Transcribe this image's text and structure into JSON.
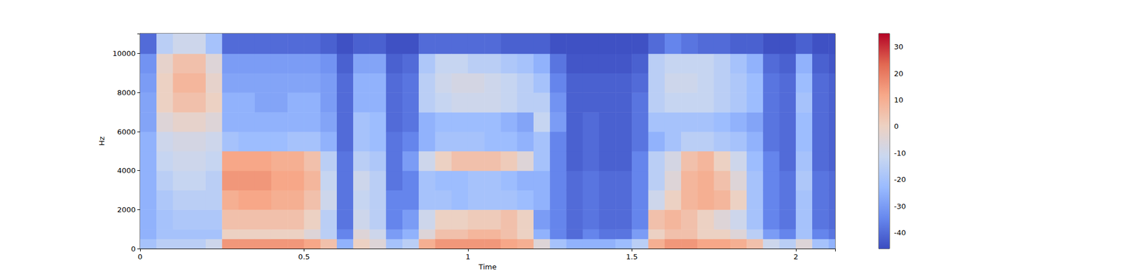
{
  "chart_data": {
    "type": "heatmap",
    "xlabel": "Time",
    "ylabel": "Hz",
    "xlim": [
      0,
      2.12
    ],
    "xticks": [
      0,
      0.5,
      1,
      1.5,
      2
    ],
    "ylim": [
      0,
      11025
    ],
    "yticks": [
      0,
      2000,
      4000,
      6000,
      8000,
      10000
    ],
    "time_edges": [
      0,
      0.05,
      0.1,
      0.15,
      0.2,
      0.25,
      0.3,
      0.35,
      0.4,
      0.45,
      0.5,
      0.55,
      0.6,
      0.65,
      0.7,
      0.75,
      0.8,
      0.85,
      0.9,
      0.95,
      1.0,
      1.05,
      1.1,
      1.15,
      1.2,
      1.25,
      1.3,
      1.35,
      1.4,
      1.45,
      1.5,
      1.55,
      1.6,
      1.65,
      1.7,
      1.75,
      1.8,
      1.85,
      1.9,
      1.95,
      2.0,
      2.05,
      2.1,
      2.12
    ],
    "freq_edges": [
      0,
      500,
      1000,
      2000,
      3000,
      4000,
      5000,
      6000,
      7000,
      8000,
      9000,
      10000,
      11025
    ],
    "cells": [
      [
        -20,
        -25,
        -25,
        -25,
        -25,
        -25,
        -25,
        -28,
        -28,
        -30,
        -32,
        -40
      ],
      [
        -15,
        -20,
        -20,
        -18,
        -15,
        -12,
        -10,
        -5,
        0,
        0,
        -2,
        -15
      ],
      [
        -15,
        -20,
        -18,
        -15,
        -12,
        -10,
        -8,
        -2,
        5,
        8,
        5,
        -10
      ],
      [
        -15,
        -20,
        -18,
        -15,
        -12,
        -10,
        -8,
        -2,
        5,
        8,
        5,
        -10
      ],
      [
        -10,
        -20,
        -18,
        -15,
        -15,
        -12,
        -10,
        -5,
        0,
        -2,
        -5,
        -20
      ],
      [
        15,
        0,
        5,
        10,
        15,
        12,
        -20,
        -25,
        -25,
        -28,
        -30,
        -40
      ],
      [
        15,
        0,
        5,
        12,
        15,
        12,
        -22,
        -25,
        -25,
        -28,
        -30,
        -40
      ],
      [
        15,
        0,
        5,
        12,
        15,
        12,
        -22,
        -25,
        -28,
        -28,
        -30,
        -40
      ],
      [
        15,
        0,
        5,
        10,
        12,
        10,
        -22,
        -25,
        -28,
        -28,
        -30,
        -40
      ],
      [
        15,
        0,
        5,
        10,
        12,
        10,
        -20,
        -25,
        -25,
        -28,
        -30,
        -40
      ],
      [
        12,
        -5,
        0,
        5,
        8,
        5,
        -20,
        -25,
        -25,
        -28,
        -30,
        -40
      ],
      [
        5,
        -15,
        -15,
        -10,
        -12,
        -15,
        -25,
        -28,
        -30,
        -30,
        -32,
        -42
      ],
      [
        -25,
        -35,
        -38,
        -38,
        -38,
        -38,
        -40,
        -40,
        -40,
        -40,
        -42,
        -45
      ],
      [
        0,
        -5,
        -10,
        -12,
        -10,
        -15,
        -20,
        -20,
        -25,
        -25,
        -28,
        -42
      ],
      [
        -5,
        -10,
        -15,
        -15,
        -15,
        -18,
        -22,
        -22,
        -25,
        -25,
        -28,
        -42
      ],
      [
        -20,
        -30,
        -35,
        -35,
        -38,
        -38,
        -38,
        -40,
        -40,
        -40,
        -42,
        -45
      ],
      [
        -15,
        -25,
        -30,
        -35,
        -35,
        -30,
        -35,
        -38,
        -38,
        -38,
        -40,
        -45
      ],
      [
        10,
        -5,
        -10,
        -20,
        -20,
        -10,
        -25,
        -25,
        -15,
        -15,
        -18,
        -40
      ],
      [
        15,
        5,
        0,
        -20,
        -22,
        0,
        -20,
        -22,
        -12,
        -10,
        -12,
        -40
      ],
      [
        15,
        5,
        0,
        -22,
        -22,
        5,
        -20,
        -22,
        -10,
        -8,
        -12,
        -40
      ],
      [
        15,
        8,
        2,
        -20,
        -20,
        5,
        -20,
        -22,
        -10,
        -8,
        -15,
        -40
      ],
      [
        15,
        8,
        2,
        -20,
        -20,
        5,
        -22,
        -22,
        -10,
        -10,
        -15,
        -40
      ],
      [
        12,
        5,
        5,
        -20,
        -22,
        2,
        -22,
        -25,
        -12,
        -12,
        -18,
        -42
      ],
      [
        10,
        0,
        0,
        -22,
        -25,
        -5,
        -25,
        -28,
        -15,
        -15,
        -20,
        -42
      ],
      [
        -5,
        -25,
        -30,
        -25,
        -25,
        -20,
        -20,
        -12,
        -15,
        -20,
        -25,
        -42
      ],
      [
        -20,
        -35,
        -35,
        -35,
        -35,
        -35,
        -35,
        -30,
        -32,
        -35,
        -38,
        -45
      ],
      [
        -25,
        -40,
        -40,
        -40,
        -40,
        -42,
        -42,
        -42,
        -42,
        -42,
        -44,
        -45
      ],
      [
        -25,
        -35,
        -38,
        -38,
        -38,
        -40,
        -40,
        -40,
        -42,
        -42,
        -44,
        -45
      ],
      [
        -25,
        -38,
        -40,
        -40,
        -40,
        -42,
        -42,
        -42,
        -42,
        -42,
        -44,
        -45
      ],
      [
        -22,
        -38,
        -40,
        -40,
        -40,
        -42,
        -42,
        -42,
        -42,
        -42,
        -44,
        -45
      ],
      [
        -15,
        -30,
        -35,
        -35,
        -35,
        -35,
        -38,
        -38,
        -38,
        -40,
        -42,
        -45
      ],
      [
        10,
        0,
        5,
        -10,
        -15,
        -15,
        -25,
        -20,
        -15,
        -15,
        -15,
        -40
      ],
      [
        15,
        5,
        8,
        0,
        -5,
        -8,
        -20,
        -20,
        -12,
        -10,
        -12,
        -35
      ],
      [
        15,
        5,
        5,
        8,
        8,
        5,
        -15,
        -20,
        -12,
        -10,
        -12,
        -38
      ],
      [
        12,
        0,
        0,
        10,
        10,
        8,
        -15,
        -20,
        -12,
        -12,
        -12,
        -40
      ],
      [
        12,
        0,
        -5,
        8,
        5,
        0,
        -18,
        -22,
        -15,
        -15,
        -15,
        -40
      ],
      [
        10,
        -5,
        -10,
        0,
        -5,
        -10,
        -20,
        -25,
        -18,
        -18,
        -20,
        -42
      ],
      [
        5,
        -15,
        -20,
        -20,
        -20,
        -22,
        -25,
        -28,
        -22,
        -22,
        -25,
        -42
      ],
      [
        -10,
        -30,
        -35,
        -35,
        -35,
        -35,
        -38,
        -38,
        -38,
        -38,
        -40,
        -45
      ],
      [
        -15,
        -35,
        -38,
        -38,
        -38,
        -40,
        -40,
        -40,
        -40,
        -40,
        -42,
        -45
      ],
      [
        -5,
        -20,
        -20,
        -20,
        -18,
        -20,
        -22,
        -22,
        -20,
        -22,
        -25,
        -42
      ],
      [
        -20,
        -35,
        -38,
        -38,
        -38,
        -40,
        -40,
        -40,
        -40,
        -40,
        -42,
        -45
      ],
      [
        -25,
        -38,
        -40,
        -40,
        -40,
        -42,
        -42,
        -42,
        -42,
        -42,
        -44,
        -45
      ]
    ],
    "colorbar": {
      "range": [
        -46,
        35
      ],
      "ticks": [
        -40,
        -30,
        -20,
        -10,
        0,
        10,
        20,
        30
      ]
    }
  }
}
